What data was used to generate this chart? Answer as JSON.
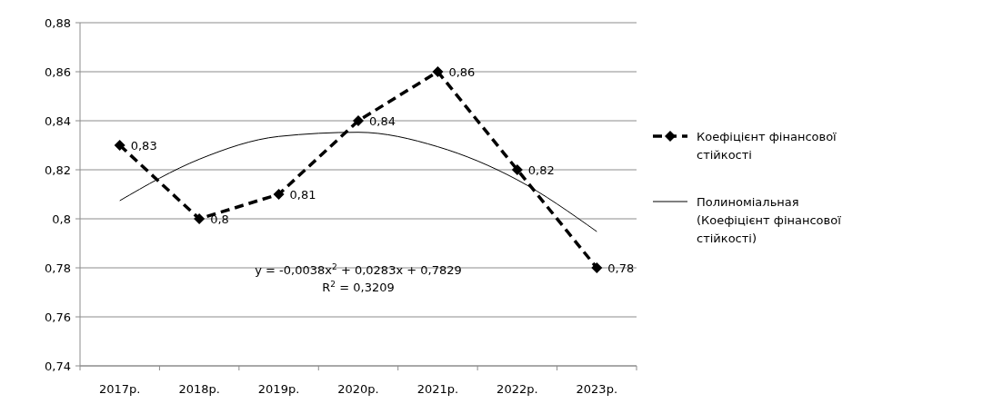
{
  "chart_data": {
    "type": "line",
    "categories": [
      "2017р.",
      "2018р.",
      "2019р.",
      "2020р.",
      "2021р.",
      "2022р.",
      "2023р."
    ],
    "series": [
      {
        "name": "Коефіцієнт фінансової стійкості",
        "color": "#000000",
        "values": [
          0.83,
          0.8,
          0.81,
          0.84,
          0.86,
          0.82,
          0.78
        ],
        "marker": "diamond",
        "line_style": "dashed",
        "value_labels": [
          "0,83",
          "0,8",
          "0,81",
          "0,84",
          "0,86",
          "0,82",
          "0,78"
        ]
      },
      {
        "name": "Полиноміальная (Коефіцієнт фінансової стійкості)",
        "type": "line",
        "color": "#000000",
        "values": [
          0.8074,
          0.8243,
          0.8336,
          0.8353,
          0.8294,
          0.8159,
          0.7948
        ],
        "marker": "none",
        "line_style": "solid"
      }
    ],
    "ylim": [
      0.74,
      0.88
    ],
    "yticks": [
      {
        "value": 0.74,
        "label": "0,74"
      },
      {
        "value": 0.76,
        "label": "0,76"
      },
      {
        "value": 0.78,
        "label": "0,78"
      },
      {
        "value": 0.8,
        "label": "0,8"
      },
      {
        "value": 0.82,
        "label": "0,82"
      },
      {
        "value": 0.84,
        "label": "0,84"
      },
      {
        "value": 0.86,
        "label": "0,86"
      },
      {
        "value": 0.88,
        "label": "0,88"
      }
    ],
    "grid": "y",
    "legend": "right",
    "annotations": [
      "y = -0,0038x$^{2}$ + 0,0283x + 0,7829",
      "R$^{2}$ = 0,3209"
    ]
  }
}
